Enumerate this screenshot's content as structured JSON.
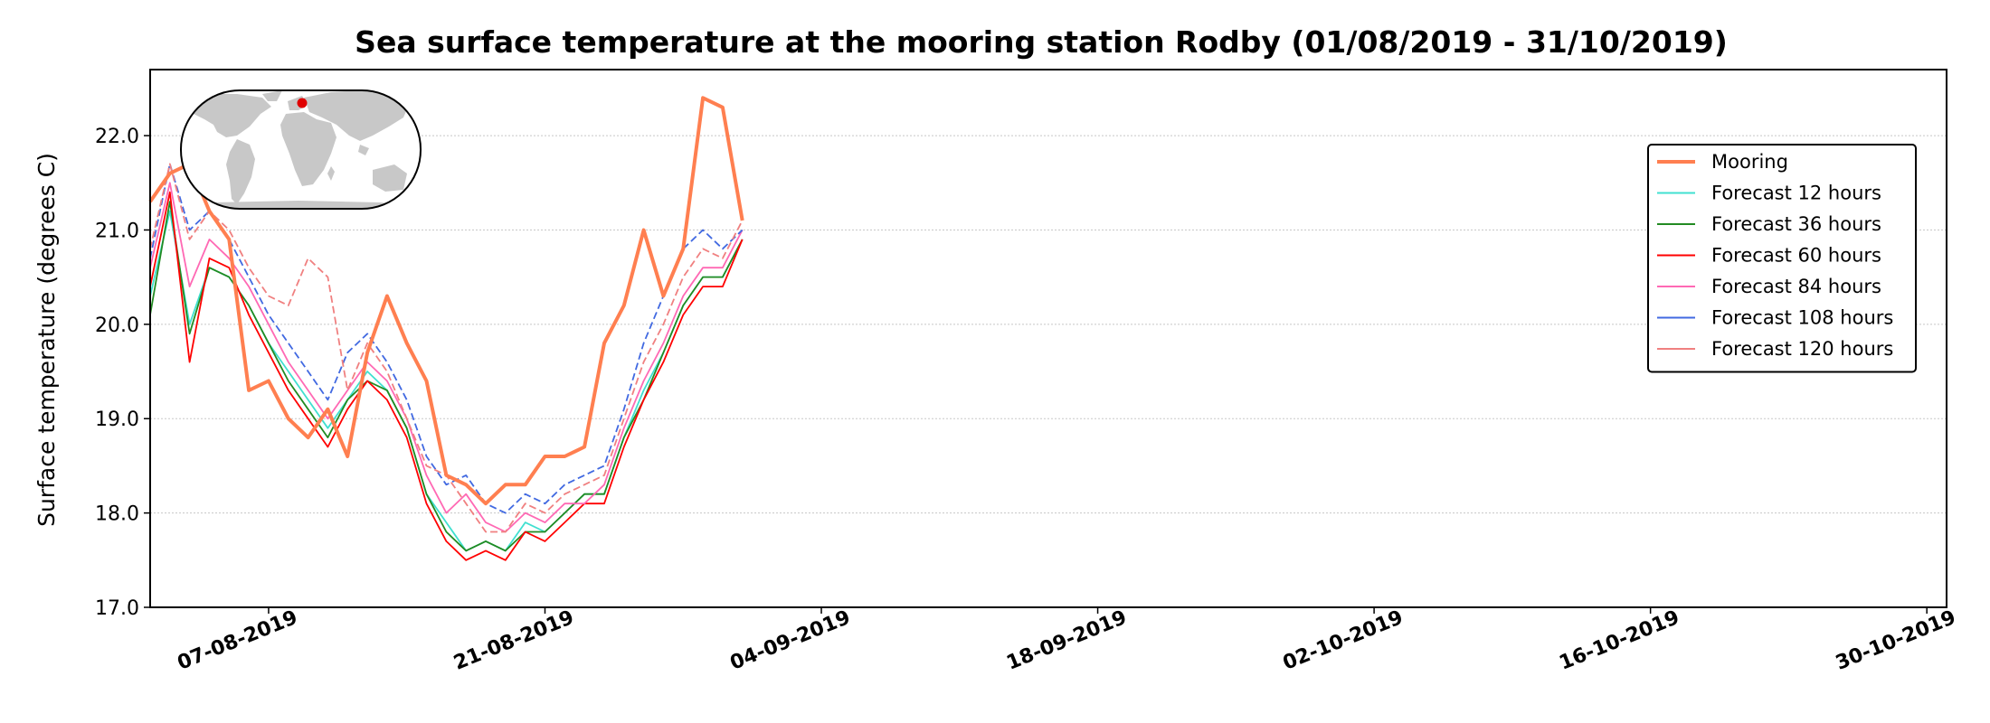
{
  "colors": {
    "Mooring": "#ff7f50",
    "Forecast 12 hours": "#40e0d0",
    "Forecast 36 hours": "#228b22",
    "Forecast 60 hours": "#ff0000",
    "Forecast 84 hours": "#ff69b4",
    "Forecast 108 hours": "#4169e1",
    "Forecast 120 hours": "#f08080",
    "land": "#c8c8c8",
    "station_marker": "#e00000",
    "grid": "#c8c8c8"
  },
  "chart_data": {
    "type": "line",
    "title": "Sea surface temperature at the mooring station Rodby (01/08/2019 - 31/10/2019)",
    "ylabel": "Surface temperature (degrees C)",
    "xlabel": "",
    "xlim": [
      "2019-08-01",
      "2019-10-31"
    ],
    "ylim": [
      17.0,
      22.7
    ],
    "y_ticks": [
      "17.0",
      "18.0",
      "19.0",
      "20.0",
      "21.0",
      "22.0"
    ],
    "x_ticks": [
      "07-08-2019",
      "21-08-2019",
      "04-09-2019",
      "18-09-2019",
      "02-10-2019",
      "16-10-2019",
      "30-10-2019"
    ],
    "grid": "horizontal dotted",
    "legend_position": "upper right",
    "inset": "world map with station marker, upper left",
    "series": [
      {
        "name": "Mooring",
        "x": [
          "2019-08-01",
          "2019-08-02",
          "2019-08-03",
          "2019-08-04",
          "2019-08-05",
          "2019-08-06",
          "2019-08-07",
          "2019-08-08",
          "2019-08-09",
          "2019-08-10",
          "2019-08-11",
          "2019-08-12",
          "2019-08-13",
          "2019-08-14",
          "2019-08-15",
          "2019-08-16",
          "2019-08-17",
          "2019-08-18",
          "2019-08-19",
          "2019-08-20",
          "2019-08-21",
          "2019-08-22",
          "2019-08-23",
          "2019-08-24",
          "2019-08-25",
          "2019-08-26",
          "2019-08-27",
          "2019-08-28",
          "2019-08-29",
          "2019-08-30",
          "2019-08-31"
        ],
        "values": [
          21.3,
          21.6,
          21.7,
          21.2,
          20.9,
          19.3,
          19.4,
          19.0,
          18.8,
          19.1,
          18.6,
          19.7,
          20.3,
          19.8,
          19.4,
          18.4,
          18.3,
          18.1,
          18.3,
          18.3,
          18.6,
          18.6,
          18.7,
          19.8,
          20.2,
          21.0,
          20.3,
          20.8,
          22.4,
          22.3,
          21.1
        ]
      },
      {
        "name": "Forecast 12 hours",
        "x": [
          "2019-08-01",
          "2019-08-02",
          "2019-08-03",
          "2019-08-04",
          "2019-08-05",
          "2019-08-06",
          "2019-08-07",
          "2019-08-08",
          "2019-08-09",
          "2019-08-10",
          "2019-08-11",
          "2019-08-12",
          "2019-08-13",
          "2019-08-14",
          "2019-08-15",
          "2019-08-16",
          "2019-08-17",
          "2019-08-18",
          "2019-08-19",
          "2019-08-20",
          "2019-08-21",
          "2019-08-22",
          "2019-08-23",
          "2019-08-24",
          "2019-08-25",
          "2019-08-26",
          "2019-08-27",
          "2019-08-28",
          "2019-08-29",
          "2019-08-30",
          "2019-08-31"
        ],
        "values": [
          20.3,
          21.2,
          20.0,
          20.6,
          20.5,
          20.2,
          19.8,
          19.5,
          19.2,
          18.9,
          19.2,
          19.5,
          19.3,
          18.9,
          18.2,
          17.9,
          17.6,
          17.7,
          17.6,
          17.9,
          17.8,
          18.0,
          18.2,
          18.2,
          18.8,
          19.3,
          19.7,
          20.2,
          20.5,
          20.5,
          20.9
        ]
      },
      {
        "name": "Forecast 36 hours",
        "x": [
          "2019-08-01",
          "2019-08-02",
          "2019-08-03",
          "2019-08-04",
          "2019-08-05",
          "2019-08-06",
          "2019-08-07",
          "2019-08-08",
          "2019-08-09",
          "2019-08-10",
          "2019-08-11",
          "2019-08-12",
          "2019-08-13",
          "2019-08-14",
          "2019-08-15",
          "2019-08-16",
          "2019-08-17",
          "2019-08-18",
          "2019-08-19",
          "2019-08-20",
          "2019-08-21",
          "2019-08-22",
          "2019-08-23",
          "2019-08-24",
          "2019-08-25",
          "2019-08-26",
          "2019-08-27",
          "2019-08-28",
          "2019-08-29",
          "2019-08-30",
          "2019-08-31"
        ],
        "values": [
          20.1,
          21.3,
          19.9,
          20.6,
          20.5,
          20.2,
          19.8,
          19.4,
          19.1,
          18.8,
          19.2,
          19.4,
          19.3,
          18.9,
          18.2,
          17.8,
          17.6,
          17.7,
          17.6,
          17.8,
          17.8,
          18.0,
          18.2,
          18.2,
          18.8,
          19.2,
          19.7,
          20.2,
          20.5,
          20.5,
          20.9
        ]
      },
      {
        "name": "Forecast 60 hours",
        "x": [
          "2019-08-01",
          "2019-08-02",
          "2019-08-03",
          "2019-08-04",
          "2019-08-05",
          "2019-08-06",
          "2019-08-07",
          "2019-08-08",
          "2019-08-09",
          "2019-08-10",
          "2019-08-11",
          "2019-08-12",
          "2019-08-13",
          "2019-08-14",
          "2019-08-15",
          "2019-08-16",
          "2019-08-17",
          "2019-08-18",
          "2019-08-19",
          "2019-08-20",
          "2019-08-21",
          "2019-08-22",
          "2019-08-23",
          "2019-08-24",
          "2019-08-25",
          "2019-08-26",
          "2019-08-27",
          "2019-08-28",
          "2019-08-29",
          "2019-08-30",
          "2019-08-31"
        ],
        "values": [
          20.4,
          21.4,
          19.6,
          20.7,
          20.6,
          20.1,
          19.7,
          19.3,
          19.0,
          18.7,
          19.1,
          19.4,
          19.2,
          18.8,
          18.1,
          17.7,
          17.5,
          17.6,
          17.5,
          17.8,
          17.7,
          17.9,
          18.1,
          18.1,
          18.7,
          19.2,
          19.6,
          20.1,
          20.4,
          20.4,
          20.9
        ]
      },
      {
        "name": "Forecast 84 hours",
        "x": [
          "2019-08-01",
          "2019-08-02",
          "2019-08-03",
          "2019-08-04",
          "2019-08-05",
          "2019-08-06",
          "2019-08-07",
          "2019-08-08",
          "2019-08-09",
          "2019-08-10",
          "2019-08-11",
          "2019-08-12",
          "2019-08-13",
          "2019-08-14",
          "2019-08-15",
          "2019-08-16",
          "2019-08-17",
          "2019-08-18",
          "2019-08-19",
          "2019-08-20",
          "2019-08-21",
          "2019-08-22",
          "2019-08-23",
          "2019-08-24",
          "2019-08-25",
          "2019-08-26",
          "2019-08-27",
          "2019-08-28",
          "2019-08-29",
          "2019-08-30",
          "2019-08-31"
        ],
        "values": [
          20.6,
          21.5,
          20.4,
          20.9,
          20.7,
          20.4,
          20.0,
          19.6,
          19.3,
          19.0,
          19.3,
          19.6,
          19.4,
          19.0,
          18.4,
          18.0,
          18.2,
          17.9,
          17.8,
          18.0,
          17.9,
          18.1,
          18.1,
          18.3,
          18.9,
          19.4,
          19.8,
          20.3,
          20.6,
          20.6,
          21.0
        ]
      },
      {
        "name": "Forecast 108 hours",
        "x": [
          "2019-08-01",
          "2019-08-02",
          "2019-08-03",
          "2019-08-04",
          "2019-08-05",
          "2019-08-06",
          "2019-08-07",
          "2019-08-08",
          "2019-08-09",
          "2019-08-10",
          "2019-08-11",
          "2019-08-12",
          "2019-08-13",
          "2019-08-14",
          "2019-08-15",
          "2019-08-16",
          "2019-08-17",
          "2019-08-18",
          "2019-08-19",
          "2019-08-20",
          "2019-08-21",
          "2019-08-22",
          "2019-08-23",
          "2019-08-24",
          "2019-08-25",
          "2019-08-26",
          "2019-08-27",
          "2019-08-28",
          "2019-08-29",
          "2019-08-30",
          "2019-08-31"
        ],
        "values": [
          20.7,
          21.7,
          21.0,
          21.2,
          20.9,
          20.5,
          20.1,
          19.8,
          19.5,
          19.2,
          19.7,
          19.9,
          19.6,
          19.2,
          18.6,
          18.3,
          18.4,
          18.1,
          18.0,
          18.2,
          18.1,
          18.3,
          18.4,
          18.5,
          19.1,
          19.8,
          20.3,
          20.8,
          21.0,
          20.8,
          21.0
        ]
      },
      {
        "name": "Forecast 120 hours",
        "x": [
          "2019-08-01",
          "2019-08-02",
          "2019-08-03",
          "2019-08-04",
          "2019-08-05",
          "2019-08-06",
          "2019-08-07",
          "2019-08-08",
          "2019-08-09",
          "2019-08-10",
          "2019-08-11",
          "2019-08-12",
          "2019-08-13",
          "2019-08-14",
          "2019-08-15",
          "2019-08-16",
          "2019-08-17",
          "2019-08-18",
          "2019-08-19",
          "2019-08-20",
          "2019-08-21",
          "2019-08-22",
          "2019-08-23",
          "2019-08-24",
          "2019-08-25",
          "2019-08-26",
          "2019-08-27",
          "2019-08-28",
          "2019-08-29",
          "2019-08-30",
          "2019-08-31"
        ],
        "values": [
          20.8,
          21.7,
          20.9,
          21.2,
          21.0,
          20.6,
          20.3,
          20.2,
          20.7,
          20.5,
          19.3,
          19.8,
          19.5,
          19.0,
          18.5,
          18.4,
          18.1,
          17.8,
          17.8,
          18.1,
          18.0,
          18.2,
          18.3,
          18.4,
          19.0,
          19.6,
          20.0,
          20.5,
          20.8,
          20.7,
          21.1
        ]
      }
    ]
  }
}
